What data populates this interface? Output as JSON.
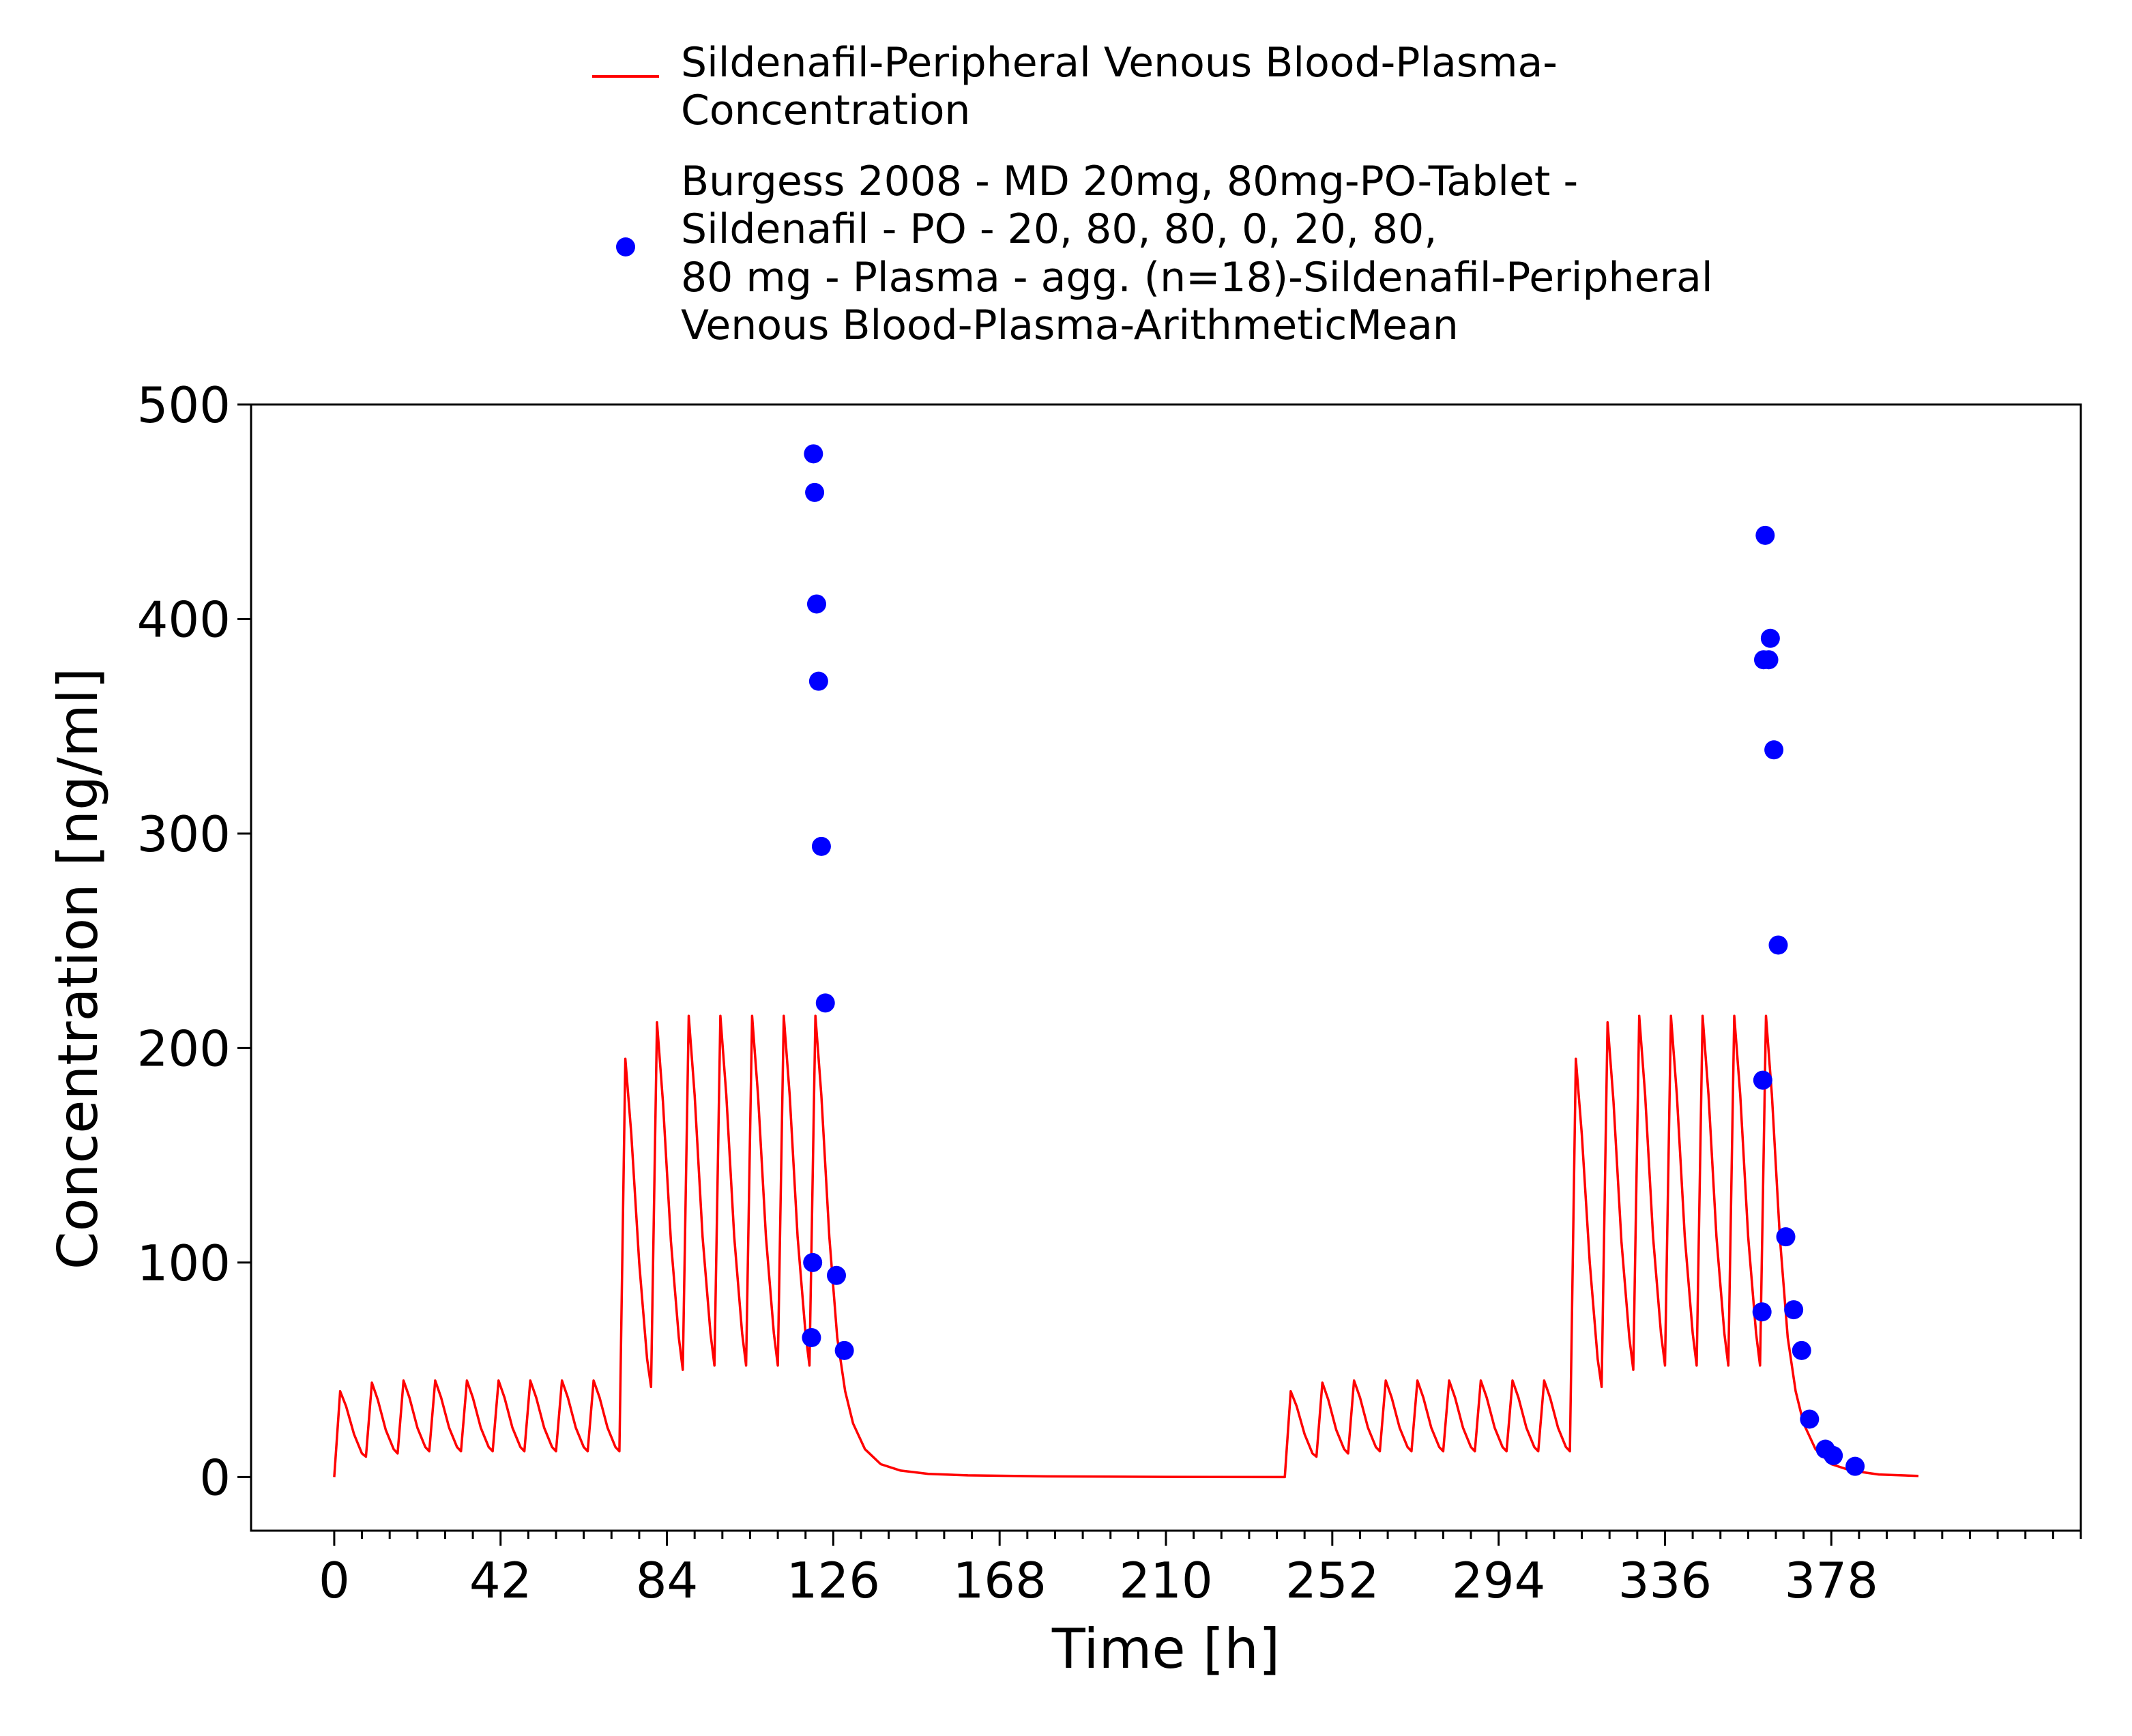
{
  "chart_data": {
    "type": "line",
    "xlabel": "Time [h]",
    "ylabel": "Concentration [ng/ml]",
    "xlim": [
      -21,
      441
    ],
    "ylim": [
      -25,
      500
    ],
    "x_ticks": [
      0,
      42,
      84,
      126,
      168,
      210,
      252,
      294,
      336,
      378
    ],
    "x_tick_labels": [
      "0",
      "42",
      "84",
      "126",
      "168",
      "210",
      "252",
      "294",
      "336",
      "378"
    ],
    "x_minor_step": 7,
    "y_ticks": [
      0,
      100,
      200,
      300,
      400,
      500
    ],
    "y_tick_labels": [
      "0",
      "100",
      "200",
      "300",
      "400",
      "500"
    ],
    "grid": false,
    "legend_position": "top-center",
    "legend": [
      {
        "kind": "line",
        "color": "#ff0000",
        "lines": [
          "Sildenafil-Peripheral Venous Blood-Plasma-",
          "Concentration"
        ]
      },
      {
        "kind": "marker",
        "color": "#0000ff",
        "lines": [
          "Burgess 2008 - MD 20mg, 80mg-PO-Tablet -",
          "Sildenafil - PO - 20, 80, 80, 0, 20, 80,",
          "80 mg - Plasma - agg. (n=18)-Sildenafil-Peripheral",
          "Venous Blood-Plasma-ArithmeticMean"
        ]
      }
    ],
    "series": [
      {
        "kind": "line",
        "color": "#ff0000",
        "description_of_shape": "Simulated profile: 20 mg q8h doses at 0-64 h, 80 mg q8h doses at 72-120 h, washout to 240 h, then 20 mg q8h at 240-304 h and 80 mg q8h at 312-360 h, washout to 400 h",
        "points": [
          [
            0,
            0
          ],
          [
            1.5,
            40
          ],
          [
            3,
            33
          ],
          [
            5,
            20
          ],
          [
            7,
            11
          ],
          [
            8,
            9.5
          ],
          [
            9.5,
            44
          ],
          [
            11,
            36
          ],
          [
            13,
            22
          ],
          [
            15,
            13
          ],
          [
            16,
            11
          ],
          [
            17.5,
            45
          ],
          [
            19,
            37
          ],
          [
            21,
            23
          ],
          [
            23,
            14
          ],
          [
            24,
            12
          ],
          [
            25.5,
            45
          ],
          [
            27,
            37
          ],
          [
            29,
            23
          ],
          [
            31,
            14
          ],
          [
            32,
            12
          ],
          [
            33.5,
            45
          ],
          [
            35,
            37
          ],
          [
            37,
            23
          ],
          [
            39,
            14
          ],
          [
            40,
            12
          ],
          [
            41.5,
            45
          ],
          [
            43,
            37
          ],
          [
            45,
            23
          ],
          [
            47,
            14
          ],
          [
            48,
            12
          ],
          [
            49.5,
            45
          ],
          [
            51,
            37
          ],
          [
            53,
            23
          ],
          [
            55,
            14
          ],
          [
            56,
            12
          ],
          [
            57.5,
            45
          ],
          [
            59,
            37
          ],
          [
            61,
            23
          ],
          [
            63,
            14
          ],
          [
            64,
            12
          ],
          [
            65.5,
            45
          ],
          [
            67,
            37
          ],
          [
            69,
            23
          ],
          [
            71,
            14
          ],
          [
            72,
            12
          ],
          [
            73.5,
            195
          ],
          [
            75,
            160
          ],
          [
            77,
            100
          ],
          [
            79,
            55
          ],
          [
            80,
            42
          ],
          [
            81.5,
            212
          ],
          [
            83,
            175
          ],
          [
            85,
            110
          ],
          [
            87,
            65
          ],
          [
            88,
            50
          ],
          [
            89.5,
            215
          ],
          [
            91,
            178
          ],
          [
            93,
            112
          ],
          [
            95,
            67
          ],
          [
            96,
            52
          ],
          [
            97.5,
            215
          ],
          [
            99,
            178
          ],
          [
            101,
            112
          ],
          [
            103,
            67
          ],
          [
            104,
            52
          ],
          [
            105.5,
            215
          ],
          [
            107,
            178
          ],
          [
            109,
            112
          ],
          [
            111,
            67
          ],
          [
            112,
            52
          ],
          [
            113.5,
            215
          ],
          [
            115,
            178
          ],
          [
            117,
            112
          ],
          [
            119,
            67
          ],
          [
            120,
            52
          ],
          [
            121.5,
            215
          ],
          [
            123,
            178
          ],
          [
            125,
            112
          ],
          [
            127,
            65
          ],
          [
            129,
            40
          ],
          [
            131,
            25
          ],
          [
            134,
            13
          ],
          [
            138,
            6
          ],
          [
            143,
            3
          ],
          [
            150,
            1.5
          ],
          [
            160,
            0.8
          ],
          [
            180,
            0.3
          ],
          [
            210,
            0.1
          ],
          [
            240,
            0
          ],
          [
            241.5,
            40
          ],
          [
            243,
            33
          ],
          [
            245,
            20
          ],
          [
            247,
            11
          ],
          [
            248,
            9.5
          ],
          [
            249.5,
            44
          ],
          [
            251,
            36
          ],
          [
            253,
            22
          ],
          [
            255,
            13
          ],
          [
            256,
            11
          ],
          [
            257.5,
            45
          ],
          [
            259,
            37
          ],
          [
            261,
            23
          ],
          [
            263,
            14
          ],
          [
            264,
            12
          ],
          [
            265.5,
            45
          ],
          [
            267,
            37
          ],
          [
            269,
            23
          ],
          [
            271,
            14
          ],
          [
            272,
            12
          ],
          [
            273.5,
            45
          ],
          [
            275,
            37
          ],
          [
            277,
            23
          ],
          [
            279,
            14
          ],
          [
            280,
            12
          ],
          [
            281.5,
            45
          ],
          [
            283,
            37
          ],
          [
            285,
            23
          ],
          [
            287,
            14
          ],
          [
            288,
            12
          ],
          [
            289.5,
            45
          ],
          [
            291,
            37
          ],
          [
            293,
            23
          ],
          [
            295,
            14
          ],
          [
            296,
            12
          ],
          [
            297.5,
            45
          ],
          [
            299,
            37
          ],
          [
            301,
            23
          ],
          [
            303,
            14
          ],
          [
            304,
            12
          ],
          [
            305.5,
            45
          ],
          [
            307,
            37
          ],
          [
            309,
            23
          ],
          [
            311,
            14
          ],
          [
            312,
            12
          ],
          [
            313.5,
            195
          ],
          [
            315,
            160
          ],
          [
            317,
            100
          ],
          [
            319,
            55
          ],
          [
            320,
            42
          ],
          [
            321.5,
            212
          ],
          [
            323,
            175
          ],
          [
            325,
            110
          ],
          [
            327,
            65
          ],
          [
            328,
            50
          ],
          [
            329.5,
            215
          ],
          [
            331,
            178
          ],
          [
            333,
            112
          ],
          [
            335,
            67
          ],
          [
            336,
            52
          ],
          [
            337.5,
            215
          ],
          [
            339,
            178
          ],
          [
            341,
            112
          ],
          [
            343,
            67
          ],
          [
            344,
            52
          ],
          [
            345.5,
            215
          ],
          [
            347,
            178
          ],
          [
            349,
            112
          ],
          [
            351,
            67
          ],
          [
            352,
            52
          ],
          [
            353.5,
            215
          ],
          [
            355,
            178
          ],
          [
            357,
            112
          ],
          [
            359,
            67
          ],
          [
            360,
            52
          ],
          [
            361.5,
            215
          ],
          [
            363,
            178
          ],
          [
            365,
            112
          ],
          [
            367,
            65
          ],
          [
            369,
            40
          ],
          [
            371,
            25
          ],
          [
            374,
            13
          ],
          [
            378,
            6
          ],
          [
            383,
            3
          ],
          [
            390,
            1.2
          ],
          [
            400,
            0.5
          ]
        ]
      },
      {
        "kind": "scatter",
        "color": "#0000ff",
        "points": [
          [
            120.5,
            65
          ],
          [
            120.8,
            100
          ],
          [
            121,
            477
          ],
          [
            121.3,
            459
          ],
          [
            121.8,
            407
          ],
          [
            122.3,
            371
          ],
          [
            123,
            294
          ],
          [
            124,
            221
          ],
          [
            126.8,
            94
          ],
          [
            128.8,
            59
          ],
          [
            360.5,
            77
          ],
          [
            360.7,
            185
          ],
          [
            360.9,
            381
          ],
          [
            361.3,
            439
          ],
          [
            362.2,
            381
          ],
          [
            362.6,
            391
          ],
          [
            363.5,
            339
          ],
          [
            364.6,
            248
          ],
          [
            366.5,
            112
          ],
          [
            368.5,
            78
          ],
          [
            370.5,
            59
          ],
          [
            372.5,
            27
          ],
          [
            376.5,
            13
          ],
          [
            378.5,
            10
          ],
          [
            384,
            5
          ]
        ]
      }
    ]
  }
}
